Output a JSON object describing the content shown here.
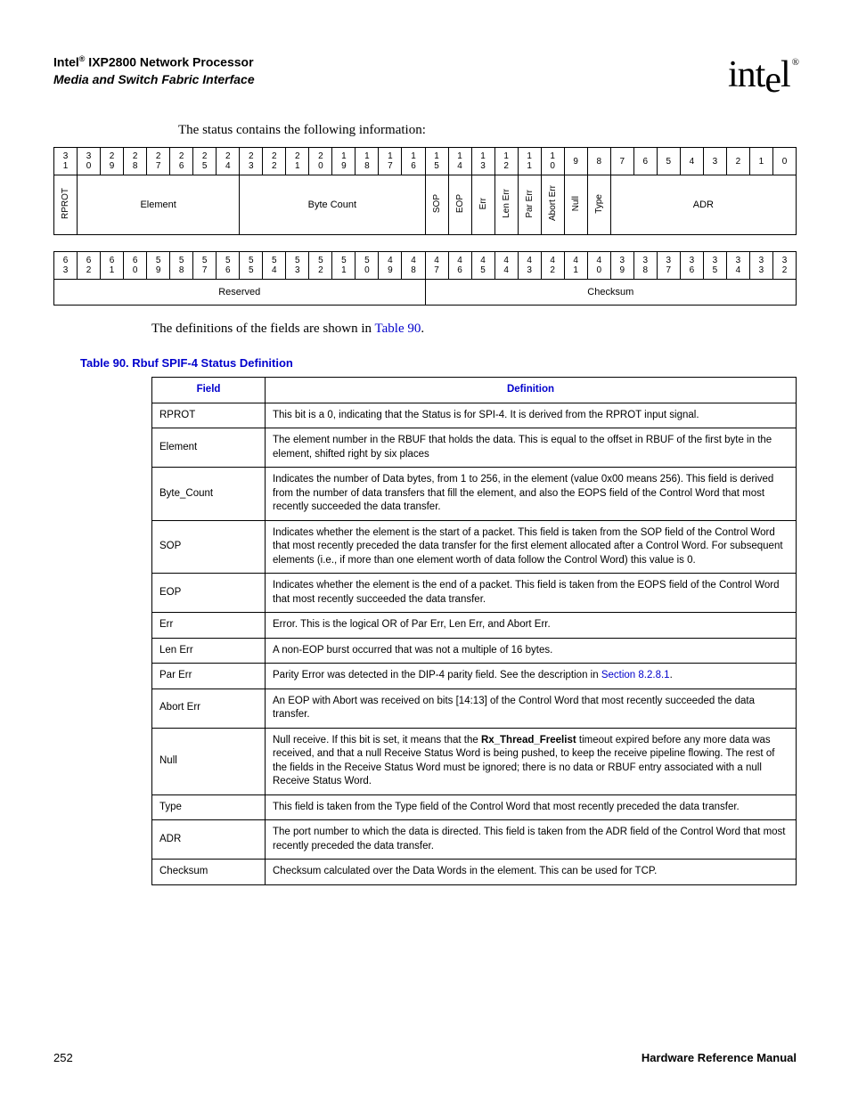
{
  "header": {
    "line1_prefix": "Intel",
    "line1_suffix": " IXP2800 Network Processor",
    "line2": "Media and Switch Fabric Interface",
    "logo_text": "intel",
    "logo_reg": "®"
  },
  "intro1": "The status contains the following information:",
  "bit_table_a": {
    "bits": [
      "31",
      "30",
      "29",
      "28",
      "27",
      "26",
      "25",
      "24",
      "23",
      "22",
      "21",
      "20",
      "19",
      "18",
      "17",
      "16",
      "15",
      "14",
      "13",
      "12",
      "11",
      "10",
      "9",
      "8",
      "7",
      "6",
      "5",
      "4",
      "3",
      "2",
      "1",
      "0"
    ],
    "f_rprot": "RPROT",
    "f_element": "Element",
    "f_bytecount": "Byte Count",
    "f_sop": "SOP",
    "f_eop": "EOP",
    "f_err": "Err",
    "f_lenerr": "Len Err",
    "f_parerr": "Par Err",
    "f_aborterr": "Abort Err",
    "f_null": "Null",
    "f_type": "Type",
    "f_adr": "ADR"
  },
  "bit_table_b": {
    "bits": [
      "63",
      "62",
      "61",
      "60",
      "59",
      "58",
      "57",
      "56",
      "55",
      "54",
      "53",
      "52",
      "51",
      "50",
      "49",
      "48",
      "47",
      "46",
      "45",
      "44",
      "43",
      "42",
      "41",
      "40",
      "39",
      "38",
      "37",
      "36",
      "35",
      "34",
      "33",
      "32"
    ],
    "f_reserved": "Reserved",
    "f_checksum": "Checksum"
  },
  "intro2_prefix": "The definitions of the fields are shown in ",
  "intro2_link": "Table 90",
  "intro2_suffix": ".",
  "table90_caption": "Table 90.  Rbuf SPIF-4 Status Definition",
  "deftable": {
    "head_field": "Field",
    "head_def": "Definition",
    "rows": [
      {
        "f": "RPROT",
        "d": "This bit is a 0, indicating that the Status is for SPI-4. It is derived from the RPROT input signal."
      },
      {
        "f": "Element",
        "d": "The element number in the RBUF that holds the data. This is equal to the offset in RBUF of the first byte in the element, shifted right by six places"
      },
      {
        "f": "Byte_Count",
        "d": "Indicates the number of Data bytes, from 1 to 256, in the element (value 0x00 means 256). This field is derived from the number of data transfers that fill the element, and also the EOPS field of the Control Word that most recently succeeded the data transfer."
      },
      {
        "f": "SOP",
        "d": "Indicates whether the element is the start of a packet. This field is taken from the SOP field of the Control Word that most recently preceded the data transfer for the first element allocated after a Control Word. For subsequent elements (i.e., if more than one element worth of data follow the Control Word) this value is 0."
      },
      {
        "f": "EOP",
        "d": "Indicates whether the element is the end of a packet. This field is taken from the EOPS field of the Control Word that most recently succeeded the data transfer."
      },
      {
        "f": "Err",
        "d": "Error. This is the logical OR of Par Err, Len Err, and Abort Err."
      },
      {
        "f": "Len Err",
        "d": "A non-EOP burst occurred that was not a multiple of 16 bytes."
      },
      {
        "f": "Par Err",
        "d": "Parity Error was detected in the DIP-4 parity field. See the description in ",
        "link": "Section 8.2.8.1",
        "suffix": "."
      },
      {
        "f": "Abort Err",
        "d": "An EOP with Abort was received on bits [14:13] of the Control Word that most recently succeeded the data transfer."
      },
      {
        "f": "Null",
        "d": "Null receive. If this bit is set, it means that the ",
        "bold": "Rx_Thread_Freelist",
        "d2": " timeout expired before any more data was received, and that a null Receive Status Word is being pushed, to keep the receive pipeline flowing. The rest of the fields in the Receive Status Word must be ignored; there is no data or RBUF entry associated with a null Receive Status Word."
      },
      {
        "f": "Type",
        "d": "This field is taken from the Type field of the Control Word that most recently preceded the data transfer."
      },
      {
        "f": "ADR",
        "d": "The port number to which the data is directed. This field is taken from the ADR field of the Control Word that most recently preceded the data transfer."
      },
      {
        "f": "Checksum",
        "d": "Checksum calculated over the Data Words in the element. This can be used for TCP."
      }
    ]
  },
  "footer": {
    "page": "252",
    "manual": "Hardware Reference Manual"
  }
}
